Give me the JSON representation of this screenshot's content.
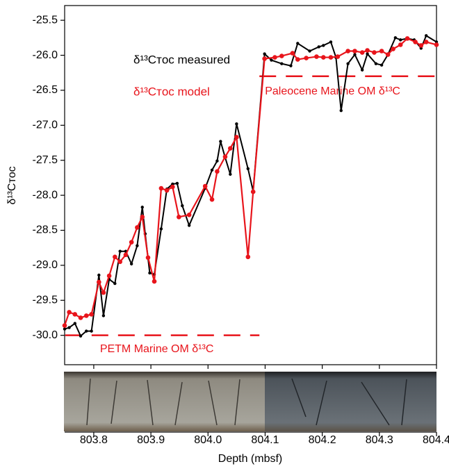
{
  "chart_data": {
    "type": "line",
    "xlabel": "Depth (mbsf)",
    "ylabel": "δ¹³Cᴛᴏᴄ",
    "xlim": [
      803.749,
      804.4
    ],
    "ylim": [
      -30.42,
      -25.29
    ],
    "xticks": [
      803.8,
      803.9,
      {
        "value": 804.0,
        "label": "804.0"
      },
      804.1,
      804.2,
      804.3,
      804.4
    ],
    "yticks": [
      -25.5,
      {
        "value": -26.0,
        "label": "-26.0"
      },
      -26.5,
      {
        "value": -27.0,
        "label": "-27.0"
      },
      -27.5,
      {
        "value": -28.0,
        "label": "-28.0"
      },
      -28.5,
      {
        "value": -29.0,
        "label": "-29.0"
      },
      -29.5,
      {
        "value": -30.0,
        "label": "-30.0"
      }
    ],
    "series": [
      {
        "name": "δ¹³Cᴛᴏᴄ measured",
        "color": "#000000",
        "x": [
          803.749,
          803.757,
          803.767,
          803.777,
          803.787,
          803.796,
          803.809,
          803.817,
          803.827,
          803.837,
          803.846,
          803.856,
          803.866,
          803.876,
          803.885,
          803.89,
          803.898,
          803.906,
          803.918,
          803.928,
          803.938,
          803.946,
          803.955,
          803.967,
          803.995,
          804.007,
          804.016,
          804.022,
          804.03,
          804.039,
          804.05,
          804.07,
          804.079,
          804.099,
          804.111,
          804.129,
          804.145,
          804.157,
          804.178,
          804.194,
          804.202,
          804.215,
          804.224,
          804.233,
          804.245,
          804.257,
          804.27,
          804.279,
          804.294,
          804.304,
          804.315,
          804.328,
          804.337,
          804.349,
          804.361,
          804.373,
          804.382,
          804.4
        ],
        "values": [
          -29.91,
          -29.89,
          -29.83,
          -30.01,
          -29.94,
          -29.94,
          -29.14,
          -29.72,
          -29.2,
          -29.26,
          -28.8,
          -28.8,
          -28.98,
          -28.72,
          -28.17,
          -28.55,
          -29.11,
          -29.13,
          -28.48,
          -27.91,
          -27.84,
          -27.83,
          -28.15,
          -28.43,
          -27.9,
          -27.64,
          -27.51,
          -27.23,
          -27.46,
          -27.7,
          -26.98,
          -27.62,
          -27.94,
          -25.98,
          -26.07,
          -26.12,
          -26.15,
          -25.83,
          -25.94,
          -25.88,
          -25.86,
          -25.81,
          -26.03,
          -26.79,
          -26.12,
          -25.99,
          -26.21,
          -25.98,
          -26.12,
          -26.14,
          -25.99,
          -25.75,
          -25.78,
          -25.76,
          -25.78,
          -25.9,
          -25.72,
          -25.81
        ]
      },
      {
        "name": "δ¹³Cᴛᴏᴄ model",
        "color": "#e8141b",
        "x": [
          803.749,
          803.757,
          803.767,
          803.777,
          803.787,
          803.796,
          803.809,
          803.817,
          803.827,
          803.837,
          803.846,
          803.856,
          803.866,
          803.876,
          803.885,
          803.895,
          803.906,
          803.918,
          803.928,
          803.938,
          803.949,
          803.967,
          803.995,
          804.007,
          804.016,
          804.03,
          804.039,
          804.05,
          804.07,
          804.079,
          804.099,
          804.117,
          804.129,
          804.148,
          804.157,
          804.172,
          804.19,
          804.202,
          804.215,
          804.227,
          804.245,
          804.257,
          804.27,
          804.279,
          804.291,
          804.304,
          804.315,
          804.324,
          804.337,
          804.349,
          804.363,
          804.373,
          804.382,
          804.4
        ],
        "values": [
          -29.86,
          -29.67,
          -29.7,
          -29.75,
          -29.72,
          -29.7,
          -29.24,
          -29.39,
          -29.15,
          -28.88,
          -28.95,
          -28.85,
          -28.67,
          -28.46,
          -28.31,
          -28.89,
          -29.23,
          -27.9,
          -27.93,
          -27.88,
          -28.31,
          -28.28,
          -27.87,
          -28.06,
          -27.66,
          -27.45,
          -27.33,
          -27.17,
          -28.88,
          -27.95,
          -26.05,
          -26.03,
          -26.01,
          -25.97,
          -26.06,
          -26.04,
          -26.02,
          -26.03,
          -26.03,
          -26.02,
          -25.94,
          -25.94,
          -25.96,
          -25.93,
          -25.96,
          -25.94,
          -25.99,
          -25.91,
          -25.85,
          -25.76,
          -25.81,
          -25.86,
          -25.81,
          -25.85
        ]
      }
    ],
    "ref_lines": [
      {
        "label": "PETM Marine OM δ¹³C",
        "x": [
          803.75,
          804.09
        ],
        "y": -30.0,
        "color": "#e8141b"
      },
      {
        "label": "Paleocene Marine OM δ¹³C",
        "x": [
          804.09,
          804.4
        ],
        "y": -26.3,
        "color": "#e8141b"
      }
    ]
  }
}
